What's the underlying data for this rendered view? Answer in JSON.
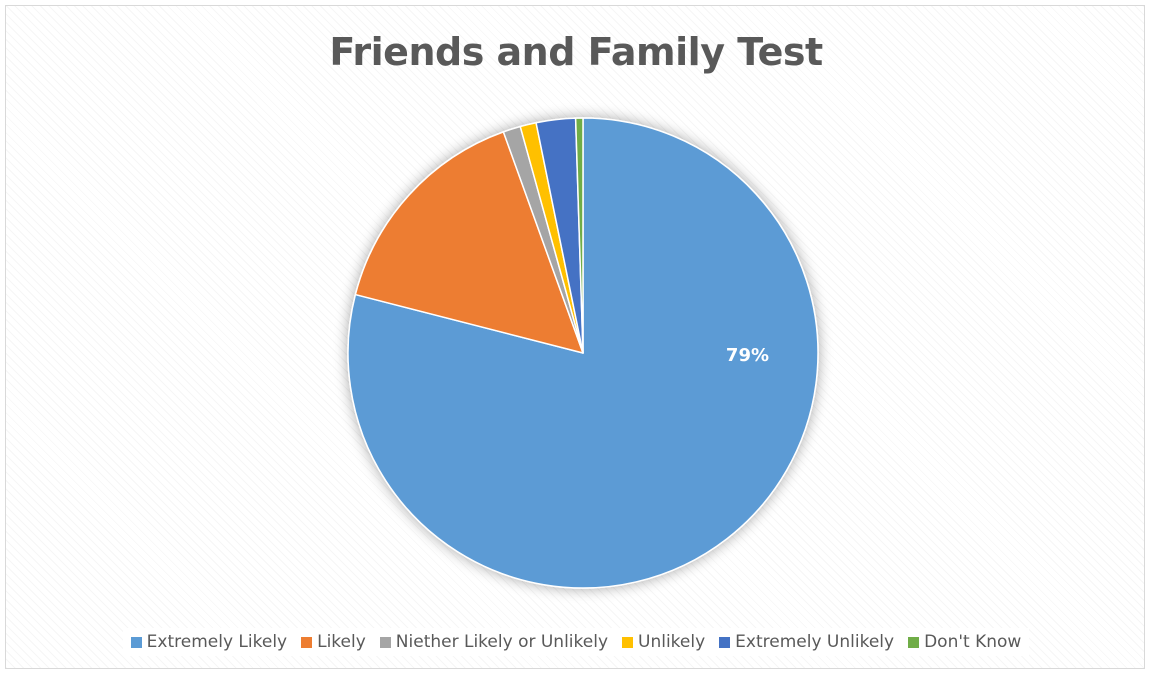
{
  "chart_data": {
    "type": "pie",
    "title": "Friends and Family Test",
    "start_angle_deg": 0,
    "direction": "clockwise",
    "legend_position": "bottom",
    "slices": [
      {
        "label": "Extremely Likely",
        "value": 79,
        "data_label": "79%",
        "color": "#5B9BD5"
      },
      {
        "label": "Likely",
        "value": 15.5,
        "data_label": "",
        "color": "#ED7D31"
      },
      {
        "label": "Niether Likely or Unlikely",
        "value": 1.2,
        "data_label": "",
        "color": "#A5A5A5"
      },
      {
        "label": "Unlikely",
        "value": 1.1,
        "data_label": "",
        "color": "#FFC000"
      },
      {
        "label": "Extremely Unlikely",
        "value": 2.7,
        "data_label": "",
        "color": "#4472C4"
      },
      {
        "label": "Don't Know",
        "value": 0.5,
        "data_label": "",
        "color": "#70AD47"
      }
    ]
  }
}
